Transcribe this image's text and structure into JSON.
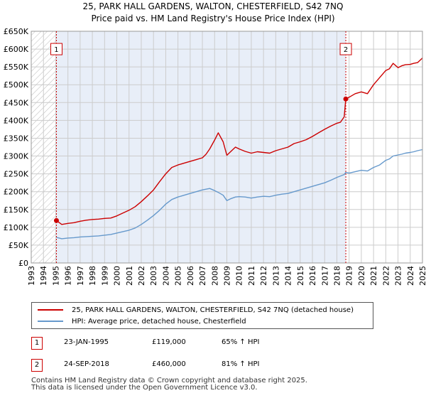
{
  "title": {
    "line1": "25, PARK HALL GARDENS, WALTON, CHESTERFIELD, S42 7NQ",
    "line2": "Price paid vs. HM Land Registry's House Price Index (HPI)"
  },
  "colors": {
    "red": "#cc0000",
    "blue": "#6699cc",
    "shade": "#e8eef8",
    "grid": "#cccccc",
    "hatch": "#bbbbbb"
  },
  "chart_data": {
    "type": "line",
    "title": "Price paid vs. HM Land Registry's House Price Index (HPI)",
    "xlabel": "",
    "ylabel": "",
    "xlim": [
      1993,
      2025
    ],
    "ylim": [
      0,
      650000
    ],
    "y_ticks": [
      {
        "value": 0,
        "label": "£0"
      },
      {
        "value": 50000,
        "label": "£50K"
      },
      {
        "value": 100000,
        "label": "£100K"
      },
      {
        "value": 150000,
        "label": "£150K"
      },
      {
        "value": 200000,
        "label": "£200K"
      },
      {
        "value": 250000,
        "label": "£250K"
      },
      {
        "value": 300000,
        "label": "£300K"
      },
      {
        "value": 350000,
        "label": "£350K"
      },
      {
        "value": 400000,
        "label": "£400K"
      },
      {
        "value": 450000,
        "label": "£450K"
      },
      {
        "value": 500000,
        "label": "£500K"
      },
      {
        "value": 550000,
        "label": "£550K"
      },
      {
        "value": 600000,
        "label": "£600K"
      },
      {
        "value": 650000,
        "label": "£650K"
      }
    ],
    "x_ticks": [
      "1993",
      "1994",
      "1995",
      "1996",
      "1997",
      "1998",
      "1999",
      "2000",
      "2001",
      "2002",
      "2003",
      "2004",
      "2005",
      "2006",
      "2007",
      "2008",
      "2009",
      "2010",
      "2011",
      "2012",
      "2013",
      "2014",
      "2015",
      "2016",
      "2017",
      "2018",
      "2019",
      "2020",
      "2021",
      "2022",
      "2023",
      "2024",
      "2025"
    ],
    "shaded_range": [
      1995.06,
      2018.73
    ],
    "hatched_before": 1995.06,
    "series": [
      {
        "name": "25, PARK HALL GARDENS, WALTON, CHESTERFIELD, S42 7NQ (detached house)",
        "color": "#cc0000",
        "x": [
          1995.06,
          1995.5,
          1996,
          1996.5,
          1997,
          1997.5,
          1998,
          1998.5,
          1999,
          1999.5,
          2000,
          2000.5,
          2001,
          2001.5,
          2002,
          2002.5,
          2003,
          2003.5,
          2004,
          2004.5,
          2005,
          2005.5,
          2006,
          2006.5,
          2007,
          2007.3,
          2007.6,
          2008,
          2008.3,
          2008.7,
          2009,
          2009.3,
          2009.7,
          2010,
          2010.5,
          2011,
          2011.5,
          2012,
          2012.5,
          2013,
          2013.5,
          2014,
          2014.5,
          2015,
          2015.5,
          2016,
          2016.5,
          2017,
          2017.5,
          2018,
          2018.3,
          2018.6,
          2018.73,
          2019,
          2019.5,
          2020,
          2020.5,
          2021,
          2021.5,
          2022,
          2022.3,
          2022.6,
          2023,
          2023.3,
          2023.6,
          2024,
          2024.3,
          2024.6,
          2025
        ],
        "y": [
          119000,
          108000,
          111000,
          113000,
          117000,
          120000,
          122000,
          123000,
          125000,
          126000,
          132000,
          140000,
          148000,
          158000,
          172000,
          188000,
          205000,
          228000,
          250000,
          268000,
          275000,
          280000,
          285000,
          290000,
          295000,
          305000,
          320000,
          345000,
          365000,
          340000,
          302000,
          312000,
          325000,
          320000,
          313000,
          308000,
          312000,
          310000,
          308000,
          315000,
          320000,
          325000,
          335000,
          340000,
          346000,
          355000,
          365000,
          375000,
          384000,
          392000,
          395000,
          410000,
          460000,
          465000,
          475000,
          480000,
          475000,
          500000,
          520000,
          540000,
          545000,
          560000,
          548000,
          553000,
          556000,
          557000,
          560000,
          562000,
          575000
        ]
      },
      {
        "name": "HPI: Average price, detached house, Chesterfield",
        "color": "#6699cc",
        "x": [
          1995.06,
          1995.5,
          1996,
          1996.5,
          1997,
          1997.5,
          1998,
          1998.5,
          1999,
          1999.5,
          2000,
          2000.5,
          2001,
          2001.5,
          2002,
          2002.5,
          2003,
          2003.5,
          2004,
          2004.5,
          2005,
          2005.5,
          2006,
          2006.5,
          2007,
          2007.3,
          2007.6,
          2008,
          2008.3,
          2008.7,
          2009,
          2009.3,
          2009.7,
          2010,
          2010.5,
          2011,
          2011.5,
          2012,
          2012.5,
          2013,
          2013.5,
          2014,
          2014.5,
          2015,
          2015.5,
          2016,
          2016.5,
          2017,
          2017.5,
          2018,
          2018.3,
          2018.6,
          2018.73,
          2019,
          2019.5,
          2020,
          2020.5,
          2021,
          2021.5,
          2022,
          2022.3,
          2022.6,
          2023,
          2023.3,
          2023.6,
          2024,
          2024.3,
          2024.6,
          2025
        ],
        "y": [
          72000,
          68000,
          70000,
          71000,
          73000,
          74000,
          75000,
          76000,
          78000,
          80000,
          84000,
          88000,
          92000,
          98000,
          108000,
          120000,
          133000,
          148000,
          165000,
          178000,
          185000,
          190000,
          195000,
          200000,
          205000,
          207000,
          209000,
          203000,
          198000,
          190000,
          175000,
          180000,
          185000,
          186000,
          185000,
          182000,
          185000,
          187000,
          186000,
          190000,
          193000,
          195000,
          200000,
          205000,
          210000,
          215000,
          220000,
          225000,
          232000,
          240000,
          244000,
          248000,
          254000,
          252000,
          256000,
          260000,
          258000,
          268000,
          275000,
          288000,
          292000,
          300000,
          303000,
          305000,
          308000,
          310000,
          312000,
          315000,
          318000
        ]
      }
    ],
    "annotations": [
      {
        "label": "1",
        "x": 1995.06,
        "y": 119000,
        "box_value": 600000
      },
      {
        "label": "2",
        "x": 2018.73,
        "y": 460000,
        "box_value": 600000
      }
    ]
  },
  "legend": {
    "red_label": "25, PARK HALL GARDENS, WALTON, CHESTERFIELD, S42 7NQ (detached house)",
    "blue_label": "HPI: Average price, detached house, Chesterfield"
  },
  "transactions": [
    {
      "num": "1",
      "date": "23-JAN-1995",
      "price": "£119,000",
      "hpi": "65% ↑ HPI"
    },
    {
      "num": "2",
      "date": "24-SEP-2018",
      "price": "£460,000",
      "hpi": "81% ↑ HPI"
    }
  ],
  "footer": {
    "line1": "Contains HM Land Registry data © Crown copyright and database right 2025.",
    "line2": "This data is licensed under the Open Government Licence v3.0."
  }
}
